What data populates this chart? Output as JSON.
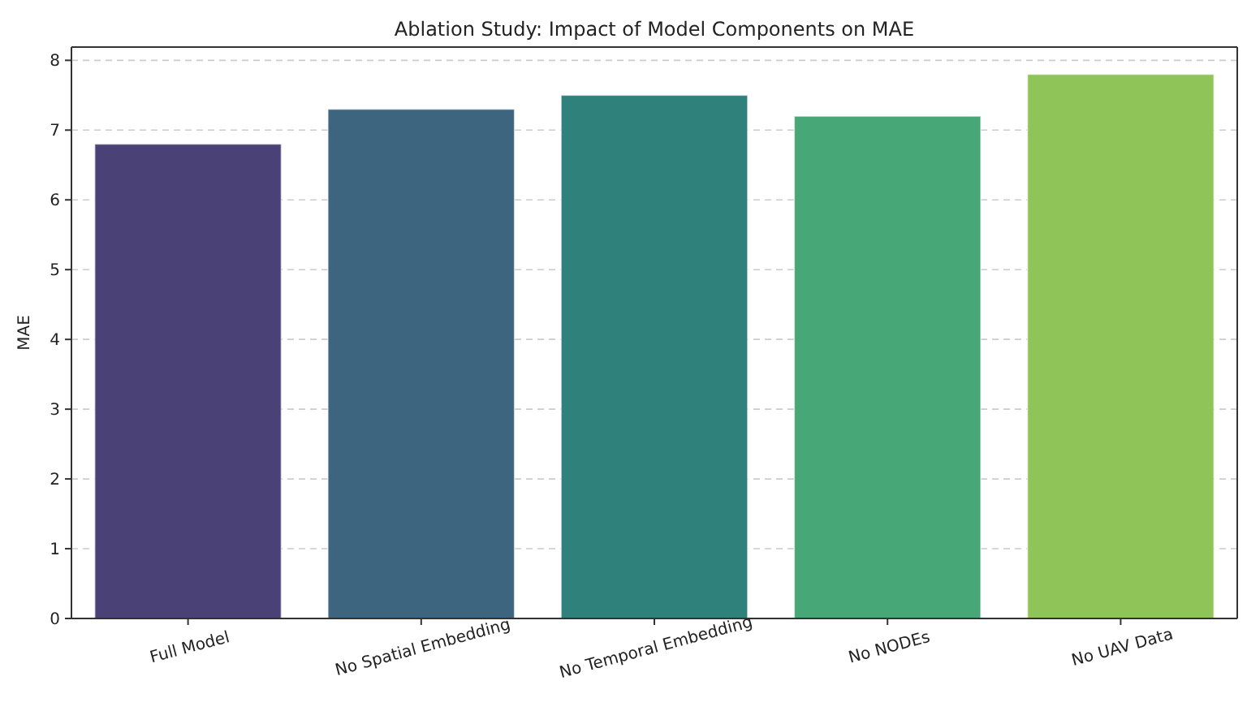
{
  "chart_data": {
    "type": "bar",
    "title": "Ablation Study: Impact of Model Components on MAE",
    "ylabel": "MAE",
    "categories": [
      "Full Model",
      "No Spatial Embedding",
      "No Temporal Embedding",
      "No NODEs",
      "No UAV Data"
    ],
    "values": [
      6.8,
      7.3,
      7.5,
      7.2,
      7.8
    ],
    "colors": [
      "#4a4176",
      "#3e6580",
      "#2e827b",
      "#47a777",
      "#8fc458"
    ],
    "ylim": [
      0,
      8.19
    ],
    "yticks": [
      0,
      1,
      2,
      3,
      4,
      5,
      6,
      7,
      8
    ],
    "grid": "y"
  }
}
